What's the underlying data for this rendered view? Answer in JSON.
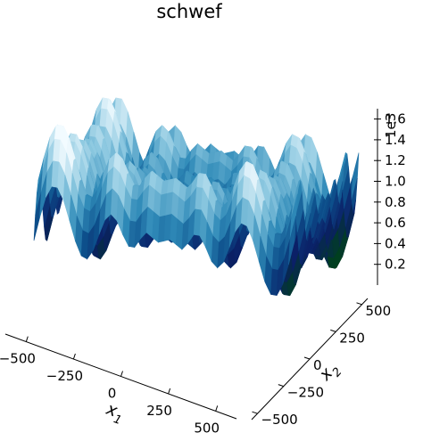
{
  "chart_data": {
    "type": "surface",
    "function": "schwef",
    "title": "schwef",
    "xlabel": "x",
    "xlabel_sub": "1",
    "ylabel": "x",
    "ylabel_sub": "2",
    "x_ticks": [
      "−500",
      "−250",
      "0",
      "250",
      "500"
    ],
    "y_ticks": [
      "−500",
      "−250",
      "0",
      "250",
      "500"
    ],
    "z_ticks": [
      "0.2",
      "0.4",
      "0.6",
      "0.8",
      "1.0",
      "1.2",
      "1.4",
      "1.6"
    ],
    "z_offset_label": "1e3",
    "xlim": [
      -500,
      500
    ],
    "ylim": [
      -500,
      500
    ],
    "zlim": [
      0,
      1.7
    ],
    "colormap": [
      "#003f1f",
      "#0b1f66",
      "#0d4f8b",
      "#2f8ab8",
      "#8cc8e0",
      "#f2fbff"
    ],
    "grid": false
  }
}
